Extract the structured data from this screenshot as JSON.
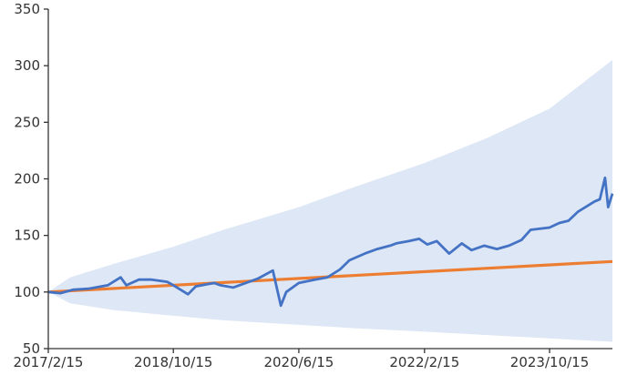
{
  "chart_data": {
    "type": "line",
    "title": "",
    "xlabel": "",
    "ylabel": "",
    "ylim": [
      50,
      350
    ],
    "y_ticks": [
      50,
      100,
      150,
      200,
      250,
      300,
      350
    ],
    "x_range": [
      "2017-02-15",
      "2024-08-15"
    ],
    "x_ticks": [
      {
        "date": "2017-02-15",
        "label": "2017/2/15"
      },
      {
        "date": "2018-10-15",
        "label": "2018/10/15"
      },
      {
        "date": "2020-06-15",
        "label": "2020/6/15"
      },
      {
        "date": "2022-02-15",
        "label": "2022/2/15"
      },
      {
        "date": "2023-10-15",
        "label": "2023/10/15"
      }
    ],
    "grid": false,
    "legend": "none",
    "colors": {
      "band": "#dde7f5",
      "index_series": "#4472c4",
      "baseline_series": "#ed7d31",
      "axis": "#333333"
    },
    "band": {
      "x": [
        "2017-02-15",
        "2017-06-01",
        "2018-01-01",
        "2018-10-15",
        "2019-06-15",
        "2020-06-15",
        "2021-03-15",
        "2022-02-15",
        "2022-12-15",
        "2023-10-15",
        "2024-08-15"
      ],
      "upper": [
        100,
        113,
        125,
        140,
        155,
        175,
        193,
        214,
        236,
        262,
        305
      ],
      "lower": [
        100,
        90,
        84,
        79,
        75,
        71,
        68,
        65,
        62,
        59,
        56
      ]
    },
    "series": [
      {
        "x": [
          "2017-02-15",
          "2017-04-15",
          "2017-06-15",
          "2017-09-01",
          "2017-12-01",
          "2018-02-01",
          "2018-03-01",
          "2018-05-01",
          "2018-07-01",
          "2018-09-15",
          "2018-10-15",
          "2018-12-25",
          "2019-02-01",
          "2019-05-01",
          "2019-06-01",
          "2019-08-01",
          "2019-10-01",
          "2019-12-01",
          "2020-02-10",
          "2020-03-20",
          "2020-04-15",
          "2020-06-15",
          "2020-09-01",
          "2020-11-01",
          "2021-01-01",
          "2021-02-15",
          "2021-05-01",
          "2021-07-01",
          "2021-09-01",
          "2021-10-01",
          "2021-12-01",
          "2022-01-20",
          "2022-03-01",
          "2022-04-15",
          "2022-06-15",
          "2022-08-15",
          "2022-10-01",
          "2022-12-01",
          "2023-02-01",
          "2023-04-01",
          "2023-06-01",
          "2023-07-15",
          "2023-10-15",
          "2023-12-01",
          "2024-01-15",
          "2024-03-01",
          "2024-04-15",
          "2024-05-20",
          "2024-06-15",
          "2024-07-10",
          "2024-07-25",
          "2024-08-15"
        ],
        "values": [
          100,
          99,
          102,
          103,
          106,
          113,
          106,
          111,
          111,
          109,
          106,
          98,
          105,
          108,
          106,
          104,
          108,
          112,
          119,
          88,
          100,
          108,
          111,
          113,
          120,
          128,
          134,
          138,
          141,
          143,
          145,
          147,
          142,
          145,
          134,
          143,
          137,
          141,
          138,
          141,
          146,
          155,
          157,
          161,
          163,
          171,
          176,
          180,
          182,
          201,
          175,
          187
        ]
      },
      {
        "x": [
          "2017-02-15",
          "2024-08-15"
        ],
        "values": [
          100,
          127
        ]
      }
    ]
  }
}
